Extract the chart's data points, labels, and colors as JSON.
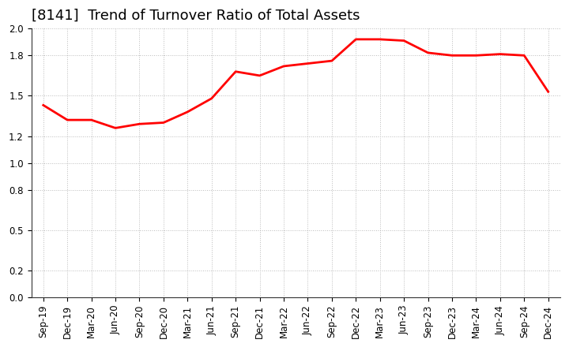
{
  "title": "[8141]  Trend of Turnover Ratio of Total Assets",
  "x_labels": [
    "Sep-19",
    "Dec-19",
    "Mar-20",
    "Jun-20",
    "Sep-20",
    "Dec-20",
    "Mar-21",
    "Jun-21",
    "Sep-21",
    "Dec-21",
    "Mar-22",
    "Jun-22",
    "Sep-22",
    "Dec-22",
    "Mar-23",
    "Jun-23",
    "Sep-23",
    "Dec-23",
    "Mar-24",
    "Jun-24",
    "Sep-24",
    "Dec-24"
  ],
  "y_values": [
    1.43,
    1.32,
    1.32,
    1.26,
    1.29,
    1.3,
    1.38,
    1.48,
    1.68,
    1.65,
    1.72,
    1.74,
    1.76,
    1.92,
    1.92,
    1.91,
    1.82,
    1.8,
    1.8,
    1.81,
    1.8,
    1.53
  ],
  "line_color": "#FF0000",
  "line_width": 2.0,
  "ylim": [
    0.0,
    2.0
  ],
  "yticks": [
    0.0,
    0.2,
    0.5,
    0.8,
    1.0,
    1.2,
    1.5,
    1.8,
    2.0
  ],
  "grid_color": "#bbbbbb",
  "grid_style": "dotted",
  "background_color": "#ffffff",
  "title_fontsize": 13,
  "tick_fontsize": 8.5
}
